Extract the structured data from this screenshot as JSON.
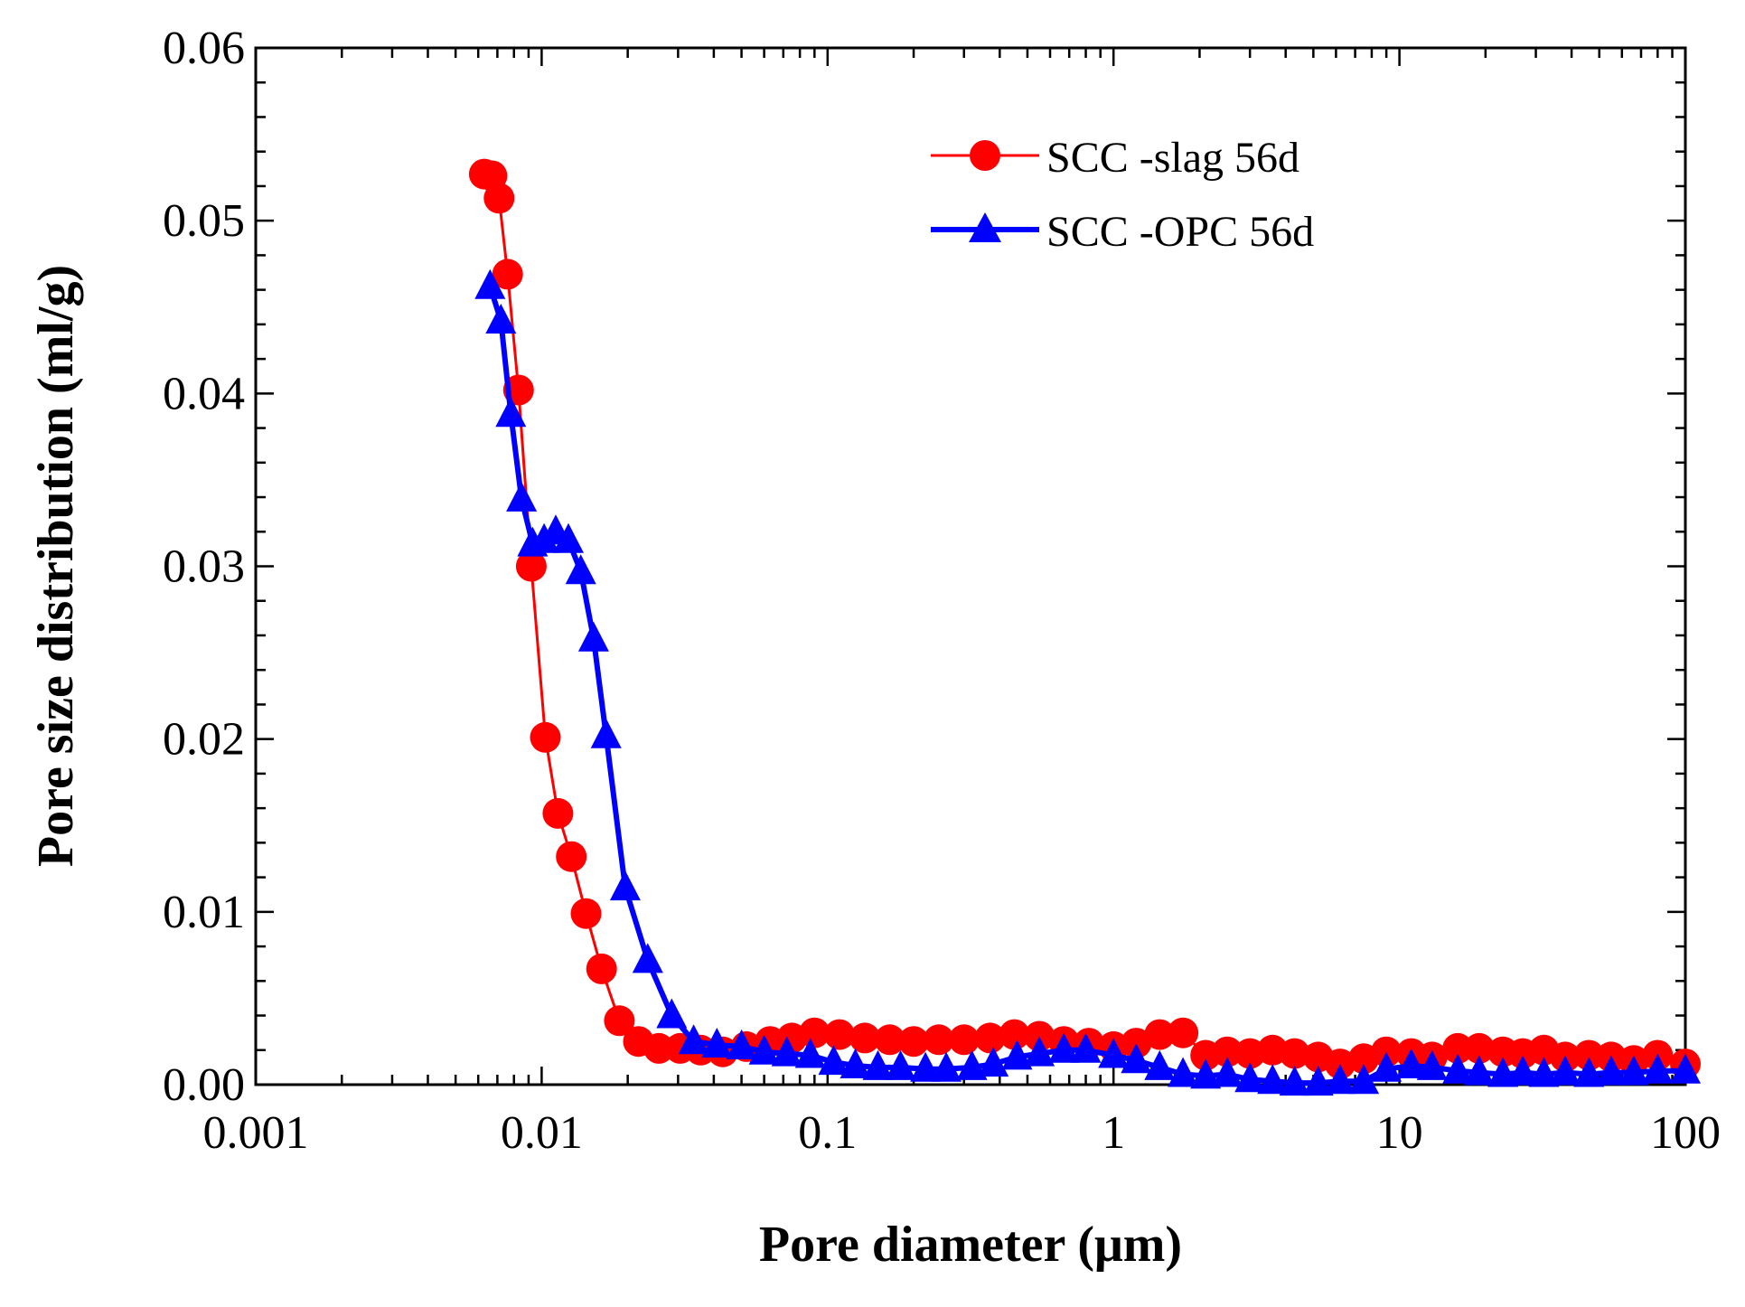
{
  "chart_data": {
    "type": "line",
    "xlabel": "Pore diameter (μm)",
    "ylabel": "Pore size distribution  (ml/g)",
    "xscale": "log",
    "xlim": [
      0.001,
      100
    ],
    "ylim": [
      0,
      0.06
    ],
    "x_ticks": [
      0.001,
      0.01,
      0.1,
      1,
      10,
      100
    ],
    "x_tick_labels": [
      "0.001",
      "0.01",
      "0.1",
      "1",
      "10",
      "100"
    ],
    "y_ticks": [
      0,
      0.01,
      0.02,
      0.03,
      0.04,
      0.05,
      0.06
    ],
    "y_tick_labels": [
      "0.00",
      "0.01",
      "0.02",
      "0.03",
      "0.04",
      "0.05",
      "0.06"
    ],
    "grid": false,
    "legend_position": "top-right",
    "series": [
      {
        "name": "SCC -slag 56d",
        "color": "#ff0000",
        "marker": "circle",
        "x": [
          0.0063,
          0.0067,
          0.0071,
          0.0076,
          0.0083,
          0.0092,
          0.0103,
          0.0114,
          0.0127,
          0.0143,
          0.0162,
          0.0187,
          0.0218,
          0.0257,
          0.0305,
          0.036,
          0.043,
          0.052,
          0.063,
          0.075,
          0.09,
          0.11,
          0.135,
          0.165,
          0.2,
          0.245,
          0.3,
          0.37,
          0.45,
          0.55,
          0.67,
          0.82,
          1.0,
          1.2,
          1.45,
          1.75,
          2.1,
          2.5,
          3.0,
          3.6,
          4.3,
          5.2,
          6.2,
          7.5,
          9.0,
          11,
          13,
          16,
          19,
          23,
          27,
          32,
          38,
          46,
          55,
          66,
          80,
          100
        ],
        "y": [
          0.0527,
          0.0526,
          0.0513,
          0.0469,
          0.0402,
          0.03,
          0.0201,
          0.0157,
          0.0132,
          0.0099,
          0.0067,
          0.0037,
          0.0025,
          0.0021,
          0.0021,
          0.002,
          0.0019,
          0.0022,
          0.0025,
          0.0027,
          0.003,
          0.0029,
          0.0027,
          0.0026,
          0.0025,
          0.0026,
          0.0026,
          0.0027,
          0.0029,
          0.0028,
          0.0025,
          0.0024,
          0.0022,
          0.0024,
          0.0029,
          0.003,
          0.0017,
          0.0019,
          0.0018,
          0.002,
          0.0018,
          0.0016,
          0.0012,
          0.0015,
          0.0019,
          0.0018,
          0.0016,
          0.0021,
          0.0021,
          0.0019,
          0.0018,
          0.002,
          0.0016,
          0.0017,
          0.0016,
          0.0014,
          0.0017,
          0.0012
        ]
      },
      {
        "name": "SCC -OPC 56d",
        "color": "#0000ff",
        "marker": "triangle",
        "x": [
          0.0066,
          0.0072,
          0.0078,
          0.0085,
          0.0093,
          0.0102,
          0.0112,
          0.0124,
          0.0137,
          0.0152,
          0.0168,
          0.0196,
          0.0235,
          0.0285,
          0.034,
          0.041,
          0.05,
          0.06,
          0.072,
          0.087,
          0.105,
          0.125,
          0.15,
          0.18,
          0.22,
          0.26,
          0.32,
          0.38,
          0.46,
          0.55,
          0.67,
          0.8,
          1.0,
          1.2,
          1.45,
          1.75,
          2.1,
          2.5,
          3.0,
          3.6,
          4.3,
          5.2,
          6.2,
          7.5,
          9.0,
          11,
          13,
          16,
          19,
          23,
          27,
          32,
          38,
          46,
          55,
          66,
          80,
          100
        ],
        "y": [
          0.0462,
          0.0442,
          0.0388,
          0.0339,
          0.0313,
          0.0315,
          0.032,
          0.0315,
          0.0297,
          0.0258,
          0.0202,
          0.0114,
          0.0072,
          0.004,
          0.0025,
          0.0023,
          0.0022,
          0.0019,
          0.0018,
          0.0017,
          0.0013,
          0.0011,
          0.001,
          0.001,
          0.0009,
          0.0009,
          0.001,
          0.0012,
          0.0016,
          0.0018,
          0.002,
          0.002,
          0.0017,
          0.0014,
          0.001,
          0.0006,
          0.0005,
          0.0006,
          0.0003,
          0.0002,
          0.0001,
          0.0001,
          0.0002,
          0.0002,
          0.0009,
          0.0011,
          0.001,
          0.0008,
          0.0007,
          0.0006,
          0.0007,
          0.0006,
          0.0007,
          0.0006,
          0.0007,
          0.0007,
          0.0008,
          0.0008
        ]
      }
    ]
  }
}
